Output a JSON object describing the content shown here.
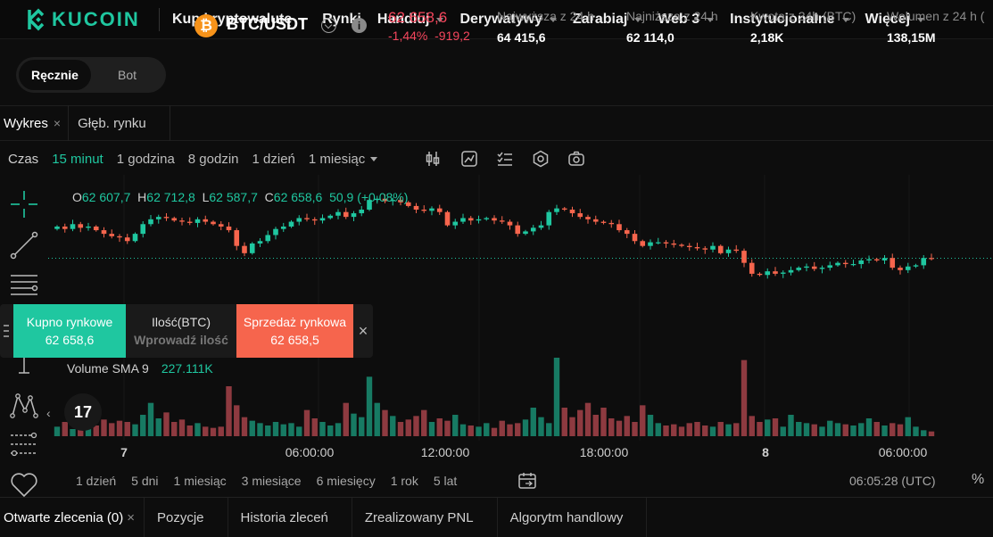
{
  "brand": {
    "name": "KUCOIN",
    "accent": "#1fc7a0"
  },
  "nav": {
    "items": [
      {
        "label": "Kup kryptowalutę",
        "dropdown": true
      },
      {
        "label": "Rynki",
        "dropdown": false
      },
      {
        "label": "Handluj",
        "dropdown": true
      },
      {
        "label": "Derywatywy",
        "dropdown": true
      },
      {
        "label": "Zarabiaj",
        "dropdown": true
      },
      {
        "label": "Web 3",
        "dropdown": true
      },
      {
        "label": "Instytucjonalne",
        "dropdown": true
      },
      {
        "label": "Więcej",
        "dropdown": true
      }
    ]
  },
  "mode": {
    "manual": "Ręcznie",
    "bot": "Bot"
  },
  "ticker": {
    "coin_symbol": "₿",
    "pair": "BTC/USDT",
    "last_price": "62 658,6",
    "change_pct": "-1,44%",
    "change_abs": "-919,2",
    "stats": [
      {
        "label": "Najwyższa z 24 h",
        "value": "64 415,6"
      },
      {
        "label": "Najniższa z 24 h",
        "value": "62 114,0"
      },
      {
        "label": "Kwota z 24h (BTC)",
        "value": "2,18K"
      },
      {
        "label": "Wolumen z 24 h (",
        "value": "138,15M"
      }
    ]
  },
  "chart_tabs": {
    "chart": "Wykres",
    "depth": "Głęb. rynku",
    "close": "×"
  },
  "intervals": {
    "label": "Czas",
    "items": [
      "15 minut",
      "1 godzina",
      "8 godzin",
      "1 dzień",
      "1 miesiąc"
    ],
    "active": "15 minut"
  },
  "legend": {
    "o_key": "O",
    "o": "62 607,7",
    "h_key": "H",
    "h": "62 712,8",
    "l_key": "L",
    "l": "62 587,7",
    "c_key": "C",
    "c": "62 658,6",
    "chg": "50,9 (+0.08%)"
  },
  "volume_legend": {
    "label": "Volume SMA 9",
    "value": "227.111K"
  },
  "tv_logo": "17",
  "quick_trade": {
    "buy_label": "Kupno rynkowe",
    "buy_price": "62 658,6",
    "qty_label": "Ilość(BTC)",
    "qty_placeholder": "Wprowadź ilość",
    "sell_label": "Sprzedaż rynkowa",
    "sell_price": "62 658,5",
    "close": "×"
  },
  "ranges": {
    "items": [
      "1 dzień",
      "5 dni",
      "1 miesiąc",
      "3 miesiące",
      "6 miesięcy",
      "1 rok",
      "5 lat"
    ]
  },
  "clock": "06:05:28 (UTC)",
  "pct_toggle": "%",
  "bottom_tabs": {
    "items": [
      "Otwarte zlecenia (0)",
      "Pozycje",
      "Historia zleceń",
      "Zrealizowany PNL",
      "Algorytm handlowy"
    ],
    "close": "×"
  },
  "chart_data": {
    "type": "candlestick",
    "x_ticks": [
      "7",
      "06:00:00",
      "12:00:00",
      "18:00:00",
      "8",
      "06:00:00"
    ],
    "colors": {
      "up": "#1fc7a0",
      "down": "#f6654d"
    },
    "y_range": [
      62050,
      63200
    ],
    "closes": [
      62920,
      62900,
      62940,
      62910,
      62920,
      62890,
      62860,
      62840,
      62830,
      62800,
      62860,
      62940,
      62980,
      63000,
      62990,
      62970,
      62960,
      62950,
      62980,
      62960,
      62940,
      62920,
      62890,
      62760,
      62700,
      62780,
      62800,
      62850,
      62900,
      62920,
      62960,
      62990,
      62980,
      62970,
      62990,
      63010,
      63040,
      63000,
      63030,
      63060,
      63140,
      63150,
      63130,
      63140,
      63120,
      63090,
      63060,
      63050,
      63070,
      63040,
      62930,
      62960,
      62990,
      62970,
      62980,
      62990,
      62970,
      62960,
      62930,
      62860,
      62880,
      62910,
      62930,
      63040,
      63070,
      63060,
      63030,
      63000,
      62980,
      62960,
      62950,
      62940,
      62890,
      62860,
      62800,
      62760,
      62790,
      62790,
      62780,
      62770,
      62760,
      62750,
      62740,
      62730,
      62760,
      62700,
      62730,
      62720,
      62620,
      62530,
      62520,
      62550,
      62530,
      62540,
      62560,
      62580,
      62590,
      62570,
      62580,
      62600,
      62620,
      62610,
      62610,
      62640,
      62650,
      62640,
      62660,
      62580,
      62560,
      62590,
      62600,
      62660,
      62658
    ],
    "volumes": [
      40,
      60,
      30,
      50,
      80,
      45,
      70,
      55,
      65,
      60,
      50,
      90,
      140,
      75,
      100,
      60,
      70,
      45,
      55,
      40,
      35,
      40,
      210,
      130,
      80,
      65,
      55,
      45,
      60,
      50,
      55,
      40,
      110,
      75,
      60,
      45,
      55,
      140,
      95,
      80,
      250,
      140,
      110,
      85,
      60,
      70,
      85,
      110,
      60,
      75,
      65,
      90,
      50,
      45,
      40,
      55,
      35,
      65,
      50,
      55,
      70,
      120,
      80,
      55,
      330,
      120,
      80,
      110,
      140,
      90,
      120,
      75,
      65,
      85,
      60,
      130,
      90,
      55,
      45,
      50,
      40,
      55,
      60,
      45,
      40,
      60,
      50,
      55,
      320,
      85,
      60,
      70,
      75,
      40,
      90,
      60,
      55,
      50,
      40,
      65,
      55,
      50,
      45,
      55,
      75,
      60,
      45,
      55,
      50,
      80,
      40,
      25,
      20
    ]
  }
}
